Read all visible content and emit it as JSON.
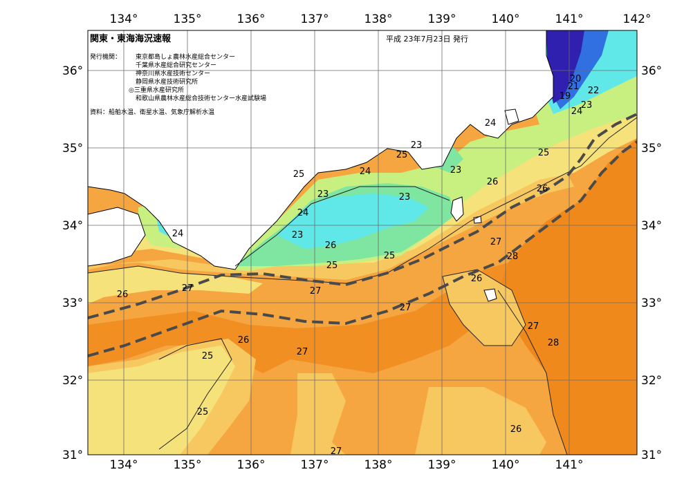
{
  "title": "関東・東海海況速報",
  "date": "平成 23年7月23日  発行",
  "issuer_label": "発行機関：",
  "issuers": [
    "東京都島しょ農林水産総合センター",
    "千葉県水産総合研究センター",
    "神奈川県水産技術センター",
    "静岡県水産技術研究所",
    "◎三重県水産研究所",
    "和歌山県農林水産総合技術センター水産試験場"
  ],
  "source": "資料：船舶水温、衛星水温、気象庁解析水温",
  "lon_ticks": [
    "134°",
    "135°",
    "136°",
    "137°",
    "138°",
    "139°",
    "140°",
    "141°",
    "142°"
  ],
  "lat_ticks": [
    "31°",
    "32°",
    "33°",
    "34°",
    "35°",
    "36°"
  ],
  "isotherm_labels": [
    "26",
    "27",
    "24",
    "24",
    "25",
    "23",
    "24",
    "25",
    "23",
    "24",
    "23",
    "26",
    "25",
    "23",
    "26",
    "27",
    "28",
    "26",
    "27",
    "27",
    "27",
    "26",
    "25",
    "25",
    "27",
    "27",
    "28",
    "26",
    "27",
    "25",
    "26",
    "25",
    "20",
    "21",
    "19",
    "22",
    "23",
    "24"
  ],
  "colors": {
    "sea_28": "#f0891c",
    "sea_27": "#f5a640",
    "sea_26": "#f8c860",
    "sea_25": "#f6e27a",
    "sea_24": "#c8f080",
    "sea_23": "#7ee6a0",
    "sea_22": "#60e8e8",
    "sea_20": "#3070e0",
    "sea_19": "#3020b0",
    "land": "#ffffff",
    "grid": "#6a6a6a",
    "front": "#4a4a4a"
  }
}
